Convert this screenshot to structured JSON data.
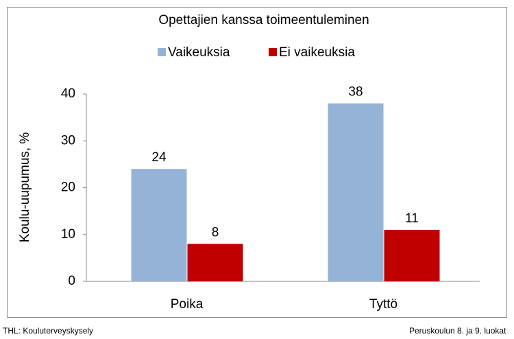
{
  "chart_data": {
    "type": "bar",
    "title": "Opettajien kanssa toimeentuleminen",
    "y_label": "Koulu-uupumus, %",
    "categories": [
      "Poika",
      "Tyttö"
    ],
    "series": [
      {
        "name": "Vaikeuksia",
        "color": "#95b3d7",
        "values": [
          24,
          38
        ]
      },
      {
        "name": "Ei vaikeuksia",
        "color": "#c00000",
        "values": [
          8,
          11
        ]
      }
    ],
    "ylim": [
      0,
      40
    ],
    "yticks": [
      0,
      10,
      20,
      30,
      40
    ],
    "legend": "top",
    "source": "THL: Kouluterveyskysely",
    "note": "Peruskoulun 8. ja 9. luokat"
  }
}
